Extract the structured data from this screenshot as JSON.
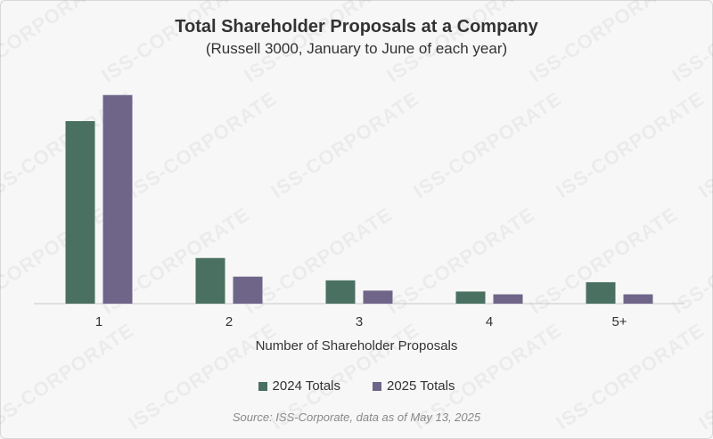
{
  "chart_data": {
    "type": "bar",
    "title": "Total Shareholder Proposals at a Company",
    "subtitle": "(Russell 3000, January to June of each year)",
    "xlabel": "Number of Shareholder Proposals",
    "ylabel": "",
    "categories": [
      "1",
      "2",
      "3",
      "4",
      "5+"
    ],
    "series": [
      {
        "name": "2024 Totals",
        "color": "#4a7062",
        "values": [
          196,
          49,
          25,
          13,
          23
        ]
      },
      {
        "name": "2025 Totals",
        "color": "#6f6589",
        "values": [
          224,
          29,
          14,
          10,
          10
        ]
      }
    ],
    "ylim": [
      0,
      240
    ],
    "grid": false,
    "legend": "bottom",
    "source": "Source: ISS-Corporate, data as of May 13, 2025"
  },
  "watermark": "ISS-CORPORATE"
}
